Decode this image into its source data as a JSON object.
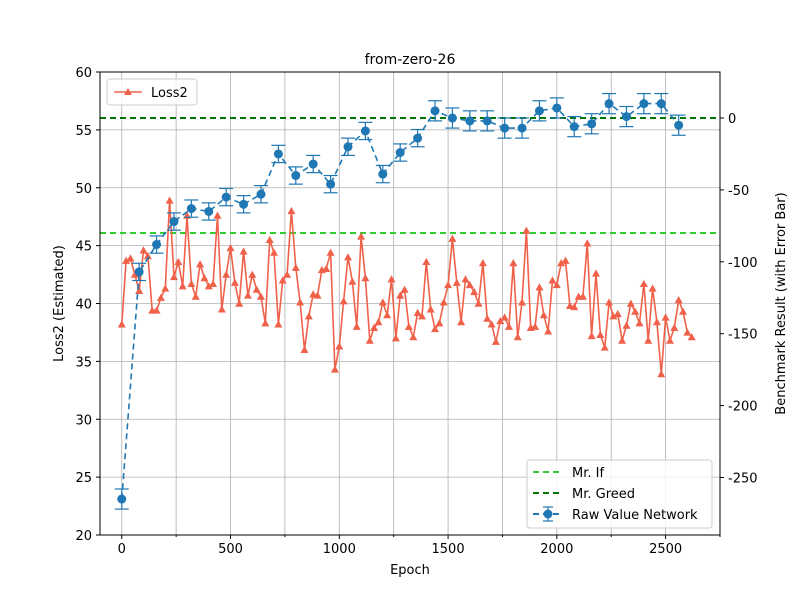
{
  "chart_data": {
    "type": "line",
    "title": "from-zero-26",
    "xlabel": "Epoch",
    "ylabel_left": "Loss2 (Estimated)",
    "ylabel_right": "Benchmark Result (with Error Bar)",
    "xlim": [
      -100,
      2750
    ],
    "ylim_left": [
      20,
      60
    ],
    "ylim_right": [
      -290,
      32
    ],
    "x_ticks": [
      0,
      500,
      1000,
      1500,
      2000,
      2500
    ],
    "x_minor_ticks": [
      250,
      750,
      1250,
      1750,
      2250,
      2750
    ],
    "y_left_ticks": [
      20,
      25,
      30,
      35,
      40,
      45,
      50,
      55,
      60
    ],
    "y_right_ticks": [
      -250,
      -200,
      -150,
      -100,
      -50,
      0
    ],
    "grid": true,
    "legend_left_placement": "top-left",
    "legend_right_placement": "bottom-right",
    "series": [
      {
        "name": "Loss2",
        "axis": "left",
        "color": "#f0614a",
        "marker": "triangle",
        "x": [
          0,
          20,
          40,
          60,
          80,
          100,
          120,
          140,
          160,
          180,
          200,
          220,
          240,
          260,
          280,
          300,
          320,
          340,
          360,
          380,
          400,
          420,
          440,
          460,
          480,
          500,
          520,
          540,
          560,
          580,
          600,
          620,
          640,
          660,
          680,
          700,
          720,
          740,
          760,
          780,
          800,
          820,
          840,
          860,
          880,
          900,
          920,
          940,
          960,
          980,
          1000,
          1020,
          1040,
          1060,
          1080,
          1100,
          1120,
          1140,
          1160,
          1180,
          1200,
          1220,
          1240,
          1260,
          1280,
          1300,
          1320,
          1340,
          1360,
          1380,
          1400,
          1420,
          1440,
          1460,
          1480,
          1500,
          1520,
          1540,
          1560,
          1580,
          1600,
          1620,
          1640,
          1660,
          1680,
          1700,
          1720,
          1740,
          1760,
          1780,
          1800,
          1820,
          1840,
          1860,
          1880,
          1900,
          1920,
          1940,
          1960,
          1980,
          2000,
          2020,
          2040,
          2060,
          2080,
          2100,
          2120,
          2140,
          2160,
          2180,
          2200,
          2220,
          2240,
          2260,
          2280,
          2300,
          2320,
          2340,
          2360,
          2380,
          2400,
          2420,
          2440,
          2460,
          2480,
          2500,
          2520,
          2540,
          2560,
          2580,
          2600,
          2620
        ],
        "values": [
          38.2,
          43.7,
          43.9,
          42.5,
          41.1,
          44.6,
          44.1,
          39.4,
          39.4,
          40.5,
          41.3,
          48.9,
          42.3,
          43.6,
          41.5,
          47.6,
          41.7,
          40.6,
          43.4,
          42.2,
          41.5,
          41.7,
          47.6,
          39.5,
          42.5,
          44.8,
          41.8,
          40.0,
          44.5,
          40.7,
          42.5,
          41.2,
          40.6,
          38.3,
          45.5,
          44.4,
          38.2,
          42.0,
          42.5,
          48.0,
          43.1,
          40.1,
          36.0,
          38.9,
          40.8,
          40.7,
          42.9,
          43.0,
          44.4,
          34.3,
          36.3,
          40.2,
          44.0,
          41.9,
          38.0,
          45.8,
          42.2,
          36.8,
          37.9,
          38.4,
          40.1,
          39.0,
          42.1,
          37.0,
          40.7,
          41.2,
          38.0,
          37.1,
          39.2,
          38.9,
          43.6,
          39.5,
          37.8,
          38.3,
          40.1,
          41.6,
          45.6,
          41.8,
          38.4,
          42.1,
          41.6,
          41.0,
          40.0,
          43.5,
          38.7,
          38.2,
          36.7,
          38.5,
          38.8,
          38.0,
          43.5,
          37.1,
          40.1,
          46.3,
          37.9,
          38.0,
          41.4,
          39.0,
          37.6,
          42.0,
          41.6,
          43.5,
          43.7,
          39.8,
          39.7,
          40.6,
          40.6,
          45.2,
          37.2,
          42.6,
          37.3,
          36.2,
          40.1,
          38.9,
          39.1,
          36.8,
          38.1,
          40.0,
          39.3,
          38.3,
          41.7,
          36.8,
          41.3,
          38.4,
          33.9,
          38.8,
          36.8,
          37.9,
          40.3,
          39.3,
          37.5,
          37.1
        ]
      },
      {
        "name": "Mr. If",
        "axis": "right",
        "color": "#33cc33",
        "style": "dashed",
        "value": -80
      },
      {
        "name": "Mr. Greed",
        "axis": "right",
        "color": "#007700",
        "style": "dashed",
        "value": 0
      },
      {
        "name": "Raw Value Network",
        "axis": "right",
        "color": "#1f77b4",
        "marker": "circle",
        "style": "dashed",
        "error_bars": true,
        "x": [
          0,
          80,
          160,
          240,
          320,
          400,
          480,
          560,
          640,
          720,
          800,
          880,
          960,
          1040,
          1120,
          1200,
          1280,
          1360,
          1440,
          1520,
          1600,
          1680,
          1760,
          1840,
          1920,
          2000,
          2080,
          2160,
          2240,
          2320,
          2400,
          2480,
          2560
        ],
        "values": [
          -265,
          -107,
          -88,
          -72,
          -63,
          -65,
          -55,
          -60,
          -53,
          -25,
          -40,
          -32,
          -46,
          -20,
          -9,
          -39,
          -24,
          -14,
          5,
          0,
          -2,
          -2,
          -7,
          -7,
          5,
          7,
          -6,
          -4,
          10,
          1,
          10,
          10,
          -5
        ],
        "errors": [
          7,
          6,
          6,
          6,
          6,
          6,
          6,
          6,
          6,
          6,
          6,
          6,
          6,
          6,
          6,
          6,
          6,
          6,
          7,
          7,
          7,
          7,
          7,
          7,
          7,
          7,
          7,
          7,
          7,
          7,
          7,
          7,
          7
        ]
      }
    ]
  }
}
